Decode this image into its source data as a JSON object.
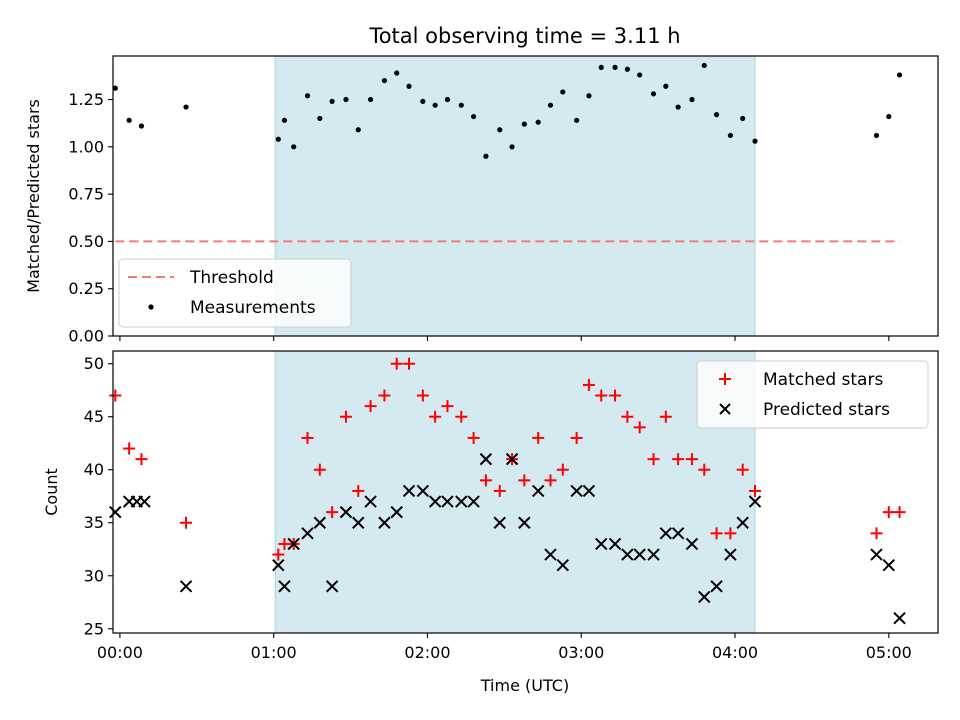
{
  "chart_data": [
    {
      "type": "scatter",
      "title": "Total observing time = 3.11 h",
      "ylabel": "Matched/Predicted stars",
      "xlabel": "",
      "xlim": [
        -0.045,
        5.32
      ],
      "ylim": [
        0.0,
        1.48
      ],
      "yticks": [
        0.0,
        0.25,
        0.5,
        0.75,
        1.0,
        1.25
      ],
      "ytick_labels": [
        "0.00",
        "0.25",
        "0.50",
        "0.75",
        "1.00",
        "1.25"
      ],
      "shaded_interval": [
        1.01,
        4.13
      ],
      "legend_position": "lower-left",
      "threshold": {
        "name": "Threshold",
        "x": [
          -0.03,
          5.07
        ],
        "y": 0.5,
        "color": "#f47a7a"
      },
      "series": [
        {
          "name": "Measurements",
          "color": "#000000",
          "x": [
            -0.03,
            0.06,
            0.14,
            0.43,
            1.03,
            1.07,
            1.13,
            1.22,
            1.3,
            1.38,
            1.47,
            1.55,
            1.63,
            1.72,
            1.8,
            1.88,
            1.97,
            2.05,
            2.13,
            2.22,
            2.3,
            2.38,
            2.47,
            2.55,
            2.63,
            2.72,
            2.8,
            2.88,
            2.97,
            3.05,
            3.13,
            3.22,
            3.3,
            3.38,
            3.47,
            3.55,
            3.63,
            3.72,
            3.8,
            3.88,
            3.97,
            4.05,
            4.13,
            4.92,
            5.0,
            5.07
          ],
          "y": [
            1.31,
            1.14,
            1.11,
            1.21,
            1.04,
            1.14,
            1.0,
            1.27,
            1.15,
            1.24,
            1.25,
            1.09,
            1.25,
            1.35,
            1.39,
            1.32,
            1.24,
            1.22,
            1.25,
            1.22,
            1.16,
            0.95,
            1.09,
            1.0,
            1.12,
            1.13,
            1.22,
            1.29,
            1.14,
            1.27,
            1.42,
            1.42,
            1.41,
            1.38,
            1.28,
            1.32,
            1.21,
            1.25,
            1.43,
            1.17,
            1.06,
            1.15,
            1.03,
            1.06,
            1.16,
            1.38
          ]
        }
      ]
    },
    {
      "type": "scatter",
      "title": "",
      "ylabel": "Count",
      "xlabel": "Time (UTC)",
      "xlim": [
        -0.045,
        5.32
      ],
      "ylim": [
        24.6,
        51.2
      ],
      "yticks": [
        25,
        30,
        35,
        40,
        45,
        50
      ],
      "ytick_labels": [
        "25",
        "30",
        "35",
        "40",
        "45",
        "50"
      ],
      "xticks": [
        0,
        1,
        2,
        3,
        4,
        5
      ],
      "xtick_labels": [
        "00:00",
        "01:00",
        "02:00",
        "03:00",
        "04:00",
        "05:00"
      ],
      "shaded_interval": [
        1.01,
        4.13
      ],
      "legend_position": "top-right",
      "series": [
        {
          "name": "Matched stars",
          "marker": "plus",
          "color": "#ff0000",
          "x": [
            -0.03,
            0.06,
            0.14,
            0.43,
            1.03,
            1.07,
            1.13,
            1.22,
            1.3,
            1.38,
            1.47,
            1.55,
            1.63,
            1.72,
            1.8,
            1.88,
            1.97,
            2.05,
            2.13,
            2.22,
            2.3,
            2.38,
            2.47,
            2.55,
            2.63,
            2.72,
            2.8,
            2.88,
            2.97,
            3.05,
            3.13,
            3.22,
            3.3,
            3.38,
            3.47,
            3.55,
            3.63,
            3.72,
            3.8,
            3.88,
            3.97,
            4.05,
            4.13,
            4.92,
            5.0,
            5.07
          ],
          "y": [
            47,
            42,
            41,
            35,
            32,
            33,
            33,
            43,
            40,
            36,
            45,
            38,
            46,
            47,
            50,
            50,
            47,
            45,
            46,
            45,
            43,
            39,
            38,
            41,
            39,
            43,
            39,
            40,
            43,
            48,
            47,
            47,
            45,
            44,
            41,
            45,
            41,
            41,
            40,
            34,
            34,
            40,
            38,
            34,
            36,
            36
          ]
        },
        {
          "name": "Predicted stars",
          "marker": "x",
          "color": "#000000",
          "x": [
            -0.03,
            0.06,
            0.11,
            0.16,
            0.43,
            1.03,
            1.07,
            1.13,
            1.22,
            1.3,
            1.38,
            1.47,
            1.55,
            1.63,
            1.72,
            1.8,
            1.88,
            1.97,
            2.05,
            2.13,
            2.22,
            2.3,
            2.38,
            2.47,
            2.55,
            2.63,
            2.72,
            2.8,
            2.88,
            2.97,
            3.05,
            3.13,
            3.22,
            3.3,
            3.38,
            3.47,
            3.55,
            3.63,
            3.72,
            3.8,
            3.88,
            3.97,
            4.05,
            4.13,
            4.92,
            5.0,
            5.07
          ],
          "y": [
            36,
            37,
            37,
            37,
            29,
            31,
            29,
            33,
            34,
            35,
            29,
            36,
            35,
            37,
            35,
            36,
            38,
            38,
            37,
            37,
            37,
            37,
            41,
            35,
            41,
            35,
            38,
            32,
            31,
            38,
            38,
            33,
            33,
            32,
            32,
            32,
            34,
            34,
            33,
            28,
            29,
            32,
            35,
            37,
            32,
            31,
            26
          ]
        }
      ]
    }
  ]
}
